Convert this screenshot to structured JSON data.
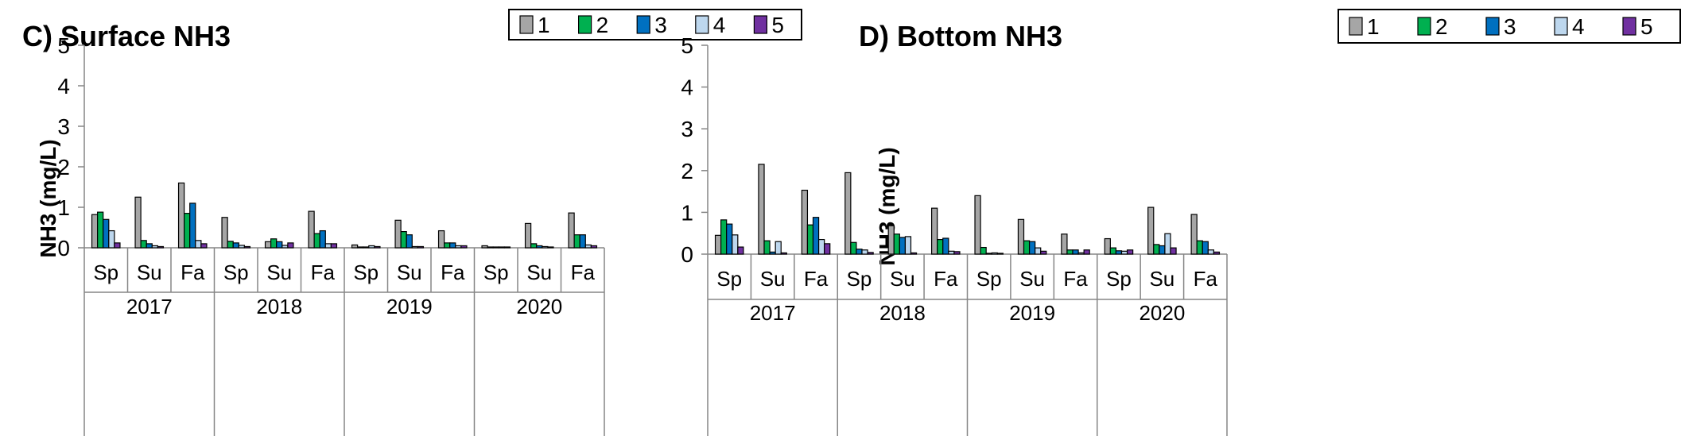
{
  "series_colors": [
    "#a6a6a6",
    "#00b050",
    "#0070c0",
    "#bdd7ee",
    "#7030a0"
  ],
  "chart_data": [
    {
      "type": "bar",
      "title": "C) Surface NH3",
      "ylabel": "NH3 (mg/L)",
      "ylim": [
        0,
        5
      ],
      "yticks": [
        "0",
        "1",
        "2",
        "3",
        "4",
        "5"
      ],
      "legend": [
        "1",
        "2",
        "3",
        "4",
        "5"
      ],
      "legend_position": "top-right",
      "categories": [
        "Sp",
        "Su",
        "Fa",
        "Sp",
        "Su",
        "Fa",
        "Sp",
        "Su",
        "Fa",
        "Sp",
        "Su",
        "Fa"
      ],
      "groups": [
        "2017",
        "2018",
        "2019",
        "2020"
      ],
      "series": [
        {
          "name": "1",
          "values": [
            0.82,
            1.25,
            1.6,
            0.75,
            0.15,
            0.9,
            0.07,
            0.68,
            0.42,
            0.05,
            0.6,
            0.86
          ]
        },
        {
          "name": "2",
          "values": [
            0.88,
            0.18,
            0.85,
            0.16,
            0.22,
            0.35,
            0.02,
            0.4,
            0.12,
            0.02,
            0.1,
            0.32
          ]
        },
        {
          "name": "3",
          "values": [
            0.7,
            0.1,
            1.1,
            0.12,
            0.15,
            0.42,
            0.02,
            0.32,
            0.12,
            0.02,
            0.05,
            0.32
          ]
        },
        {
          "name": "4",
          "values": [
            0.42,
            0.05,
            0.18,
            0.06,
            0.06,
            0.1,
            0.05,
            0.03,
            0.05,
            0.02,
            0.03,
            0.07
          ]
        },
        {
          "name": "5",
          "values": [
            0.12,
            0.03,
            0.1,
            0.03,
            0.12,
            0.1,
            0.03,
            0.03,
            0.05,
            0.02,
            0.02,
            0.05
          ]
        }
      ]
    },
    {
      "type": "bar",
      "title": "D) Bottom NH3",
      "ylabel": "NH3 (mg/L)",
      "ylim": [
        0,
        5
      ],
      "yticks": [
        "0",
        "1",
        "2",
        "3",
        "4",
        "5"
      ],
      "legend": [
        "1",
        "2",
        "3",
        "4",
        "5"
      ],
      "legend_position": "top-right",
      "categories": [
        "Sp",
        "Su",
        "Fa",
        "Sp",
        "Su",
        "Fa",
        "Sp",
        "Su",
        "Fa",
        "Sp",
        "Su",
        "Fa"
      ],
      "groups": [
        "2017",
        "2018",
        "2019",
        "2020"
      ],
      "series": [
        {
          "name": "1",
          "values": [
            0.45,
            2.15,
            1.53,
            1.95,
            0.68,
            1.1,
            1.4,
            0.83,
            0.48,
            0.37,
            1.12,
            0.95
          ]
        },
        {
          "name": "2",
          "values": [
            0.82,
            0.32,
            0.7,
            0.28,
            0.48,
            0.35,
            0.16,
            0.32,
            0.1,
            0.15,
            0.23,
            0.32
          ]
        },
        {
          "name": "3",
          "values": [
            0.72,
            0.05,
            0.88,
            0.12,
            0.4,
            0.38,
            0.02,
            0.3,
            0.1,
            0.08,
            0.2,
            0.3
          ]
        },
        {
          "name": "4",
          "values": [
            0.46,
            0.3,
            0.35,
            0.1,
            0.42,
            0.07,
            0.03,
            0.15,
            0.03,
            0.07,
            0.49,
            0.1
          ]
        },
        {
          "name": "5",
          "values": [
            0.17,
            0.03,
            0.25,
            0.04,
            0.03,
            0.06,
            0.02,
            0.07,
            0.1,
            0.1,
            0.15,
            0.05
          ]
        }
      ]
    }
  ]
}
